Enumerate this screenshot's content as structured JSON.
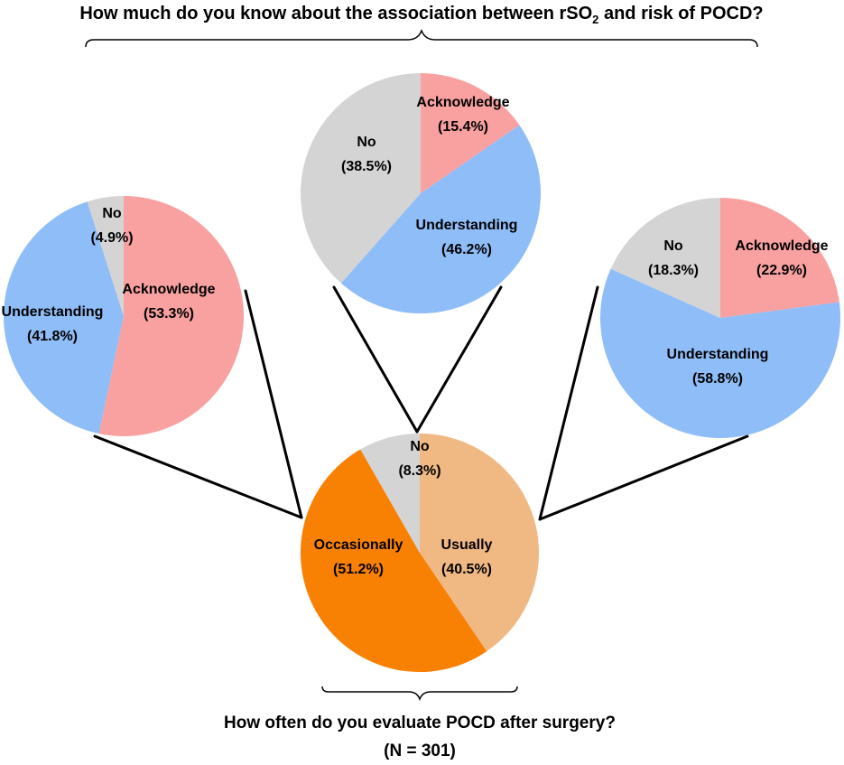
{
  "top_question": {
    "prefix": "How much do you know about the association between rSO",
    "subscript": "2",
    "suffix": " and risk of POCD?"
  },
  "bottom_question": "How often do you evaluate POCD after surgery?",
  "sample_size": "(N = 301)",
  "colors": {
    "acknowledge": "#f9a1a1",
    "understanding": "#8fbdf7",
    "no_grey": "#d4d4d4",
    "occasionally": "#f88104",
    "usually": "#f0b882"
  },
  "chart_data": [
    {
      "type": "pie",
      "role": "center",
      "slices": [
        {
          "label": "Usually",
          "value_text": "(40.5%)",
          "value": 40.5,
          "color": "#f0b882"
        },
        {
          "label": "Occasionally",
          "value_text": "(51.2%)",
          "value": 51.2,
          "color": "#f88104"
        },
        {
          "label": "No",
          "value_text": "(8.3%)",
          "value": 8.3,
          "color": "#d4d4d4"
        }
      ]
    },
    {
      "type": "pie",
      "role": "left",
      "slices": [
        {
          "label": "Acknowledge",
          "value_text": "(53.3%)",
          "value": 53.3,
          "color": "#f9a1a1"
        },
        {
          "label": "Understanding",
          "value_text": "(41.8%)",
          "value": 41.8,
          "color": "#8fbdf7"
        },
        {
          "label": "No",
          "value_text": "(4.9%)",
          "value": 4.9,
          "color": "#d4d4d4"
        }
      ]
    },
    {
      "type": "pie",
      "role": "top",
      "slices": [
        {
          "label": "Acknowledge",
          "value_text": "(15.4%)",
          "value": 15.4,
          "color": "#f9a1a1"
        },
        {
          "label": "Understanding",
          "value_text": "(46.2%)",
          "value": 46.2,
          "color": "#8fbdf7"
        },
        {
          "label": "No",
          "value_text": "(38.5%)",
          "value": 38.5,
          "color": "#d4d4d4"
        }
      ]
    },
    {
      "type": "pie",
      "role": "right",
      "slices": [
        {
          "label": "Acknowledge",
          "value_text": "(22.9%)",
          "value": 22.9,
          "color": "#f9a1a1"
        },
        {
          "label": "Understanding",
          "value_text": "(58.8%)",
          "value": 58.8,
          "color": "#8fbdf7"
        },
        {
          "label": "No",
          "value_text": "(18.3%)",
          "value": 18.3,
          "color": "#d4d4d4"
        }
      ]
    }
  ]
}
